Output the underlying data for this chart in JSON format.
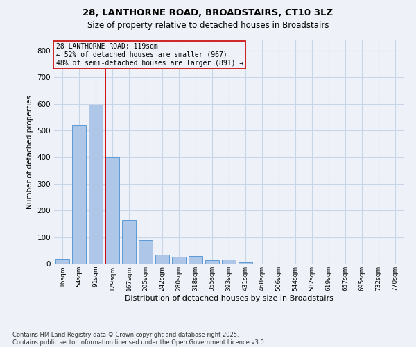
{
  "title_line1": "28, LANTHORNE ROAD, BROADSTAIRS, CT10 3LZ",
  "title_line2": "Size of property relative to detached houses in Broadstairs",
  "xlabel": "Distribution of detached houses by size in Broadstairs",
  "ylabel": "Number of detached properties",
  "bar_labels": [
    "16sqm",
    "54sqm",
    "91sqm",
    "129sqm",
    "167sqm",
    "205sqm",
    "242sqm",
    "280sqm",
    "318sqm",
    "355sqm",
    "393sqm",
    "431sqm",
    "468sqm",
    "506sqm",
    "544sqm",
    "582sqm",
    "619sqm",
    "657sqm",
    "695sqm",
    "732sqm",
    "770sqm"
  ],
  "bar_values": [
    18,
    522,
    597,
    400,
    165,
    88,
    35,
    25,
    28,
    12,
    15,
    6,
    0,
    0,
    0,
    0,
    0,
    0,
    0,
    0,
    0
  ],
  "bar_color": "#aec6e8",
  "bar_edgecolor": "#5b9bd5",
  "grid_color": "#c8d4e8",
  "background_color": "#eef2f8",
  "vline_x_index": 2.57,
  "vline_color": "#cc0000",
  "annotation_text": "28 LANTHORNE ROAD: 119sqm\n← 52% of detached houses are smaller (967)\n48% of semi-detached houses are larger (891) →",
  "annotation_box_edgecolor": "#cc0000",
  "footnote": "Contains HM Land Registry data © Crown copyright and database right 2025.\nContains public sector information licensed under the Open Government Licence v3.0.",
  "ylim": [
    0,
    840
  ],
  "yticks": [
    0,
    100,
    200,
    300,
    400,
    500,
    600,
    700,
    800
  ]
}
